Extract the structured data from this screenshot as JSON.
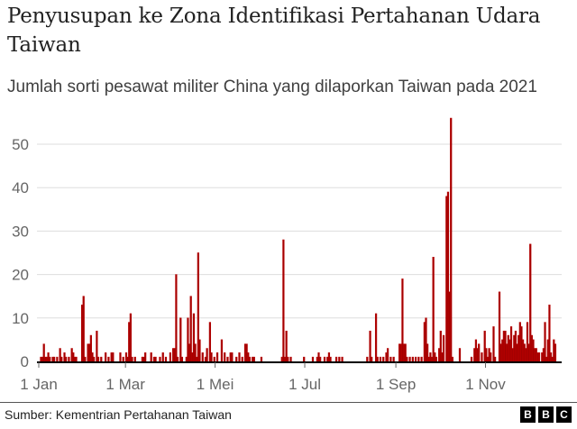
{
  "header": {
    "title": "Penyusupan ke Zona Identifikasi Pertahanan Udara Taiwan",
    "subtitle": "Jumlah sorti pesawat militer China yang dilaporkan Taiwan pada 2021"
  },
  "footer": {
    "source": "Sumber: Kementrian Pertahanan Taiwan",
    "logo_letters": [
      "B",
      "B",
      "C"
    ]
  },
  "colors": {
    "bar": "#b80000",
    "bar_fill": "#a00000",
    "grid": "#dddddd",
    "axis": "#000000",
    "text": "#222222"
  },
  "chart_data": {
    "type": "bar",
    "title": "Penyusupan ke Zona Identifikasi Pertahanan Udara Taiwan",
    "subtitle": "Jumlah sorti pesawat militer China yang dilaporkan Taiwan pada 2021",
    "xlabel": "",
    "ylabel": "",
    "ylim": [
      0,
      55
    ],
    "yticks": [
      0,
      10,
      20,
      30,
      40,
      50
    ],
    "xticks": [
      {
        "label": "1 Jan",
        "day": 0
      },
      {
        "label": "1 Mar",
        "day": 59
      },
      {
        "label": "1 Mei",
        "day": 120
      },
      {
        "label": "1 Jul",
        "day": 181
      },
      {
        "label": "1 Sep",
        "day": 243
      },
      {
        "label": "1 Nov",
        "day": 304
      }
    ],
    "grid": true,
    "legend": null,
    "x_unit": "day of 2021 (0 = 1 Jan)",
    "points": [
      [
        1,
        1
      ],
      [
        2,
        1
      ],
      [
        3,
        4
      ],
      [
        4,
        1
      ],
      [
        5,
        1
      ],
      [
        6,
        2
      ],
      [
        7,
        1
      ],
      [
        9,
        1
      ],
      [
        10,
        1
      ],
      [
        12,
        1
      ],
      [
        14,
        3
      ],
      [
        15,
        1
      ],
      [
        17,
        2
      ],
      [
        18,
        1
      ],
      [
        20,
        1
      ],
      [
        22,
        3
      ],
      [
        23,
        2
      ],
      [
        24,
        1
      ],
      [
        25,
        1
      ],
      [
        29,
        13
      ],
      [
        30,
        15
      ],
      [
        31,
        1
      ],
      [
        33,
        4
      ],
      [
        34,
        4
      ],
      [
        35,
        6
      ],
      [
        36,
        2
      ],
      [
        37,
        1
      ],
      [
        39,
        7
      ],
      [
        40,
        1
      ],
      [
        42,
        1
      ],
      [
        45,
        2
      ],
      [
        47,
        1
      ],
      [
        49,
        2
      ],
      [
        50,
        2
      ],
      [
        55,
        2
      ],
      [
        57,
        1
      ],
      [
        59,
        2
      ],
      [
        60,
        1
      ],
      [
        61,
        9
      ],
      [
        62,
        11
      ],
      [
        63,
        1
      ],
      [
        65,
        1
      ],
      [
        70,
        1
      ],
      [
        71,
        1
      ],
      [
        72,
        2
      ],
      [
        76,
        2
      ],
      [
        78,
        1
      ],
      [
        79,
        1
      ],
      [
        82,
        1
      ],
      [
        84,
        2
      ],
      [
        86,
        1
      ],
      [
        89,
        2
      ],
      [
        91,
        3
      ],
      [
        92,
        3
      ],
      [
        93,
        20
      ],
      [
        94,
        1
      ],
      [
        96,
        10
      ],
      [
        97,
        1
      ],
      [
        100,
        1
      ],
      [
        101,
        10
      ],
      [
        102,
        4
      ],
      [
        103,
        15
      ],
      [
        104,
        2
      ],
      [
        105,
        11
      ],
      [
        106,
        4
      ],
      [
        107,
        1
      ],
      [
        108,
        25
      ],
      [
        109,
        5
      ],
      [
        111,
        2
      ],
      [
        113,
        1
      ],
      [
        114,
        3
      ],
      [
        116,
        9
      ],
      [
        117,
        2
      ],
      [
        119,
        1
      ],
      [
        121,
        2
      ],
      [
        124,
        5
      ],
      [
        126,
        2
      ],
      [
        128,
        1
      ],
      [
        130,
        2
      ],
      [
        131,
        2
      ],
      [
        134,
        1
      ],
      [
        136,
        2
      ],
      [
        138,
        1
      ],
      [
        140,
        4
      ],
      [
        141,
        4
      ],
      [
        142,
        2
      ],
      [
        143,
        1
      ],
      [
        145,
        1
      ],
      [
        146,
        1
      ],
      [
        151,
        1
      ],
      [
        165,
        1
      ],
      [
        166,
        28
      ],
      [
        167,
        1
      ],
      [
        168,
        7
      ],
      [
        169,
        1
      ],
      [
        171,
        1
      ],
      [
        180,
        1
      ],
      [
        186,
        1
      ],
      [
        189,
        1
      ],
      [
        190,
        2
      ],
      [
        191,
        1
      ],
      [
        194,
        1
      ],
      [
        196,
        1
      ],
      [
        197,
        2
      ],
      [
        198,
        1
      ],
      [
        202,
        1
      ],
      [
        204,
        1
      ],
      [
        206,
        1
      ],
      [
        223,
        1
      ],
      [
        225,
        7
      ],
      [
        226,
        1
      ],
      [
        229,
        11
      ],
      [
        230,
        1
      ],
      [
        232,
        1
      ],
      [
        234,
        1
      ],
      [
        236,
        2
      ],
      [
        237,
        3
      ],
      [
        239,
        1
      ],
      [
        241,
        1
      ],
      [
        245,
        4
      ],
      [
        246,
        4
      ],
      [
        247,
        19
      ],
      [
        248,
        4
      ],
      [
        249,
        4
      ],
      [
        250,
        1
      ],
      [
        252,
        1
      ],
      [
        254,
        1
      ],
      [
        256,
        1
      ],
      [
        258,
        1
      ],
      [
        260,
        1
      ],
      [
        262,
        9
      ],
      [
        263,
        10
      ],
      [
        264,
        4
      ],
      [
        265,
        1
      ],
      [
        266,
        2
      ],
      [
        267,
        1
      ],
      [
        268,
        24
      ],
      [
        269,
        2
      ],
      [
        270,
        1
      ],
      [
        272,
        3
      ],
      [
        273,
        7
      ],
      [
        274,
        2
      ],
      [
        275,
        6
      ],
      [
        277,
        38
      ],
      [
        278,
        39
      ],
      [
        279,
        16
      ],
      [
        280,
        56
      ],
      [
        281,
        1
      ],
      [
        286,
        3
      ],
      [
        294,
        1
      ],
      [
        296,
        3
      ],
      [
        297,
        5
      ],
      [
        298,
        3
      ],
      [
        299,
        4
      ],
      [
        301,
        2
      ],
      [
        303,
        7
      ],
      [
        304,
        3
      ],
      [
        305,
        1
      ],
      [
        306,
        3
      ],
      [
        307,
        2
      ],
      [
        309,
        8
      ],
      [
        310,
        1
      ],
      [
        313,
        16
      ],
      [
        314,
        4
      ],
      [
        315,
        5
      ],
      [
        316,
        7
      ],
      [
        317,
        7
      ],
      [
        318,
        4
      ],
      [
        319,
        6
      ],
      [
        320,
        5
      ],
      [
        321,
        8
      ],
      [
        322,
        3
      ],
      [
        323,
        6
      ],
      [
        324,
        7
      ],
      [
        325,
        4
      ],
      [
        326,
        6
      ],
      [
        327,
        9
      ],
      [
        328,
        8
      ],
      [
        329,
        5
      ],
      [
        330,
        4
      ],
      [
        331,
        3
      ],
      [
        332,
        9
      ],
      [
        333,
        4
      ],
      [
        334,
        27
      ],
      [
        335,
        6
      ],
      [
        336,
        5
      ],
      [
        337,
        3
      ],
      [
        338,
        3
      ],
      [
        339,
        2
      ],
      [
        340,
        2
      ],
      [
        342,
        2
      ],
      [
        343,
        3
      ],
      [
        344,
        9
      ],
      [
        345,
        1
      ],
      [
        346,
        5
      ],
      [
        347,
        13
      ],
      [
        348,
        2
      ],
      [
        349,
        1
      ],
      [
        350,
        5
      ],
      [
        351,
        4
      ]
    ]
  }
}
